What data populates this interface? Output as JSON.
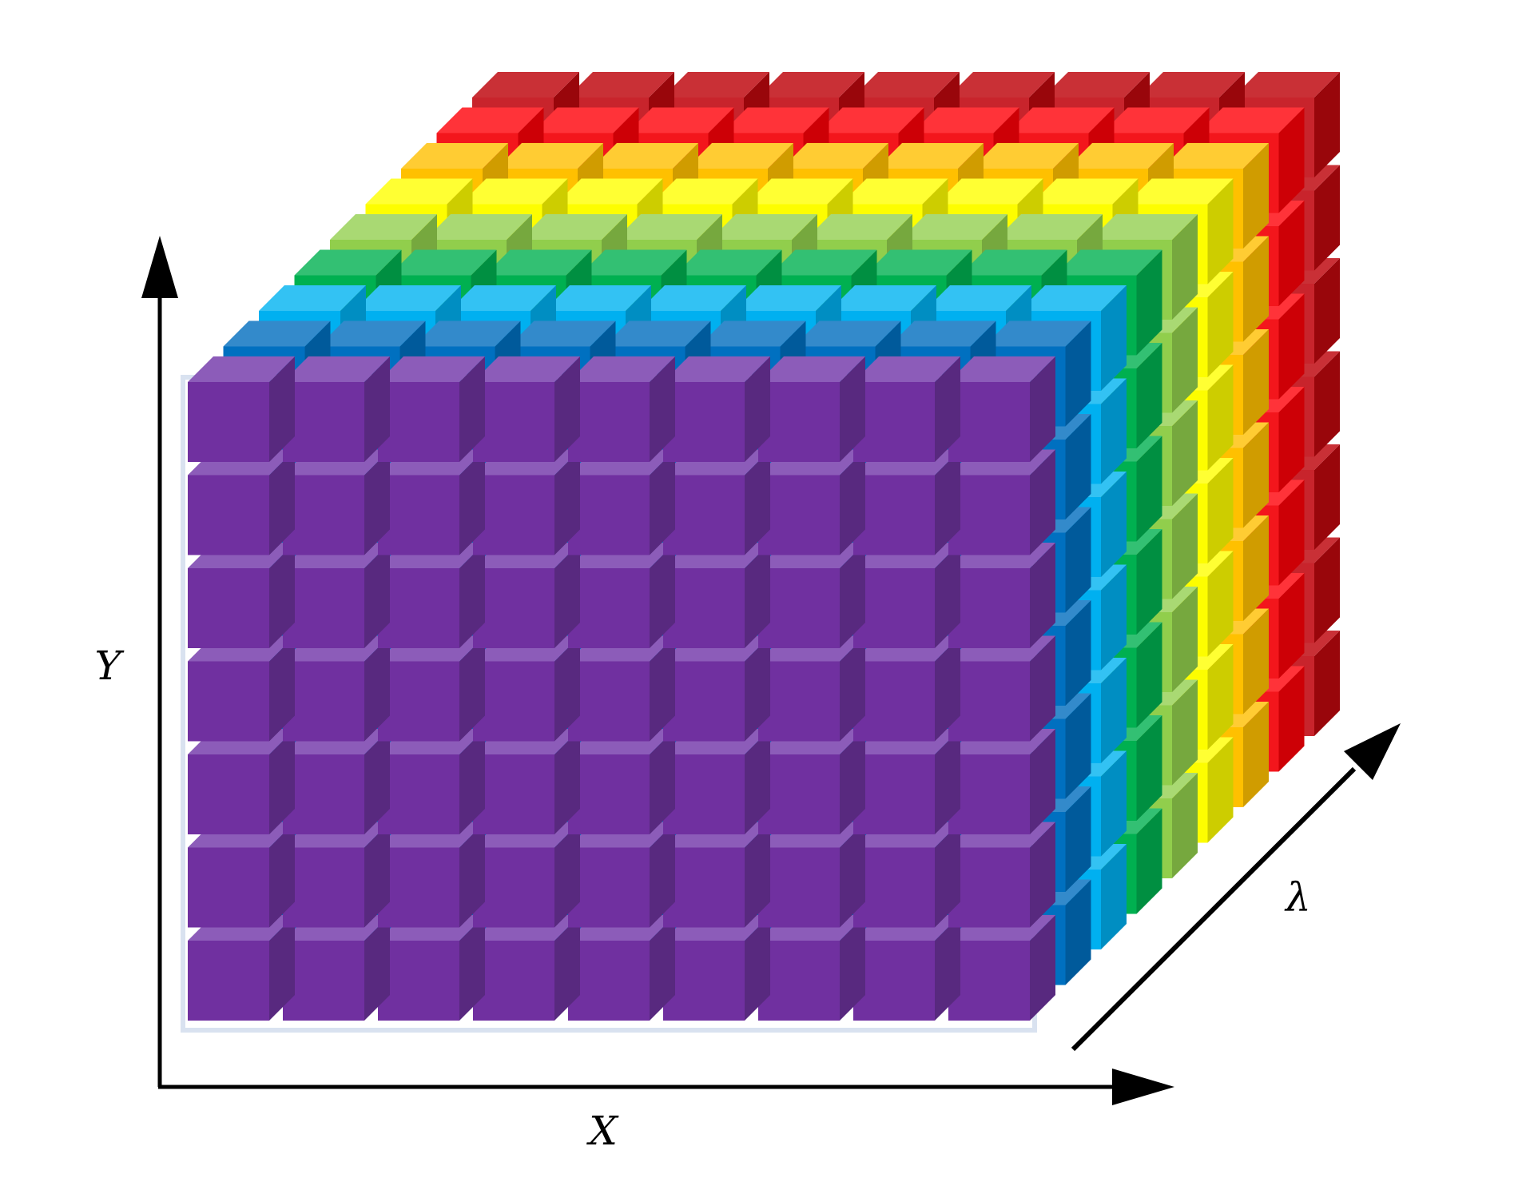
{
  "cube": {
    "columns": 9,
    "rows": 7,
    "layers": [
      {
        "name": "red",
        "top": "#c93036",
        "front": "#c8242c",
        "side": "#99060b"
      },
      {
        "name": "light-red",
        "top": "#ff3339",
        "front": "#f3161c",
        "side": "#cd0006"
      },
      {
        "name": "orange",
        "top": "#ffcc33",
        "front": "#ffc000",
        "side": "#d09c00"
      },
      {
        "name": "yellow",
        "top": "#ffff33",
        "front": "#fdfd00",
        "side": "#cdcd00"
      },
      {
        "name": "light-green",
        "top": "#a9d973",
        "front": "#91ce4c",
        "side": "#76a83e"
      },
      {
        "name": "green",
        "top": "#33c073",
        "front": "#00b050",
        "side": "#008f41"
      },
      {
        "name": "light-blue",
        "top": "#33c2f3",
        "front": "#00b0f0",
        "side": "#008ec2"
      },
      {
        "name": "blue",
        "top": "#338acb",
        "front": "#0070c0",
        "side": "#005a9b"
      },
      {
        "name": "purple",
        "top": "#8c5cb9",
        "front": "#7030a0",
        "side": "#58297f"
      }
    ]
  },
  "axes": {
    "x_label": "X",
    "y_label": "Y",
    "lambda_label": "λ",
    "color": "#000000"
  }
}
